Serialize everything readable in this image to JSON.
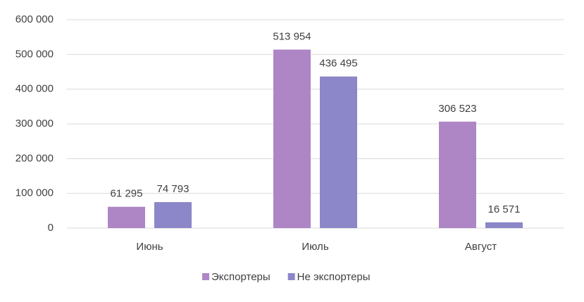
{
  "chart_data": {
    "type": "bar",
    "categories": [
      "Июнь",
      "Июль",
      "Август"
    ],
    "series": [
      {
        "name": "Экспортеры",
        "color": "#ae86c6",
        "values": [
          61295,
          513954,
          306523
        ],
        "value_labels": [
          "61 295",
          "513 954",
          "306 523"
        ]
      },
      {
        "name": "Не экспортеры",
        "color": "#8b87c8",
        "values": [
          74793,
          436495,
          16571
        ],
        "value_labels": [
          "74 793",
          "436 495",
          "16 571"
        ]
      }
    ],
    "ylim": [
      0,
      600000
    ],
    "yticks": [
      0,
      {
        "value": 100000,
        "label": "100 000"
      },
      {
        "value": 200000,
        "label": "200 000"
      },
      {
        "value": 300000,
        "label": "300 000"
      },
      {
        "value": 400000,
        "label": "400 000"
      },
      {
        "value": 500000,
        "label": "500 000"
      },
      {
        "value": 600000,
        "label": "600 000"
      }
    ],
    "grid": true,
    "legend": "bottom"
  }
}
